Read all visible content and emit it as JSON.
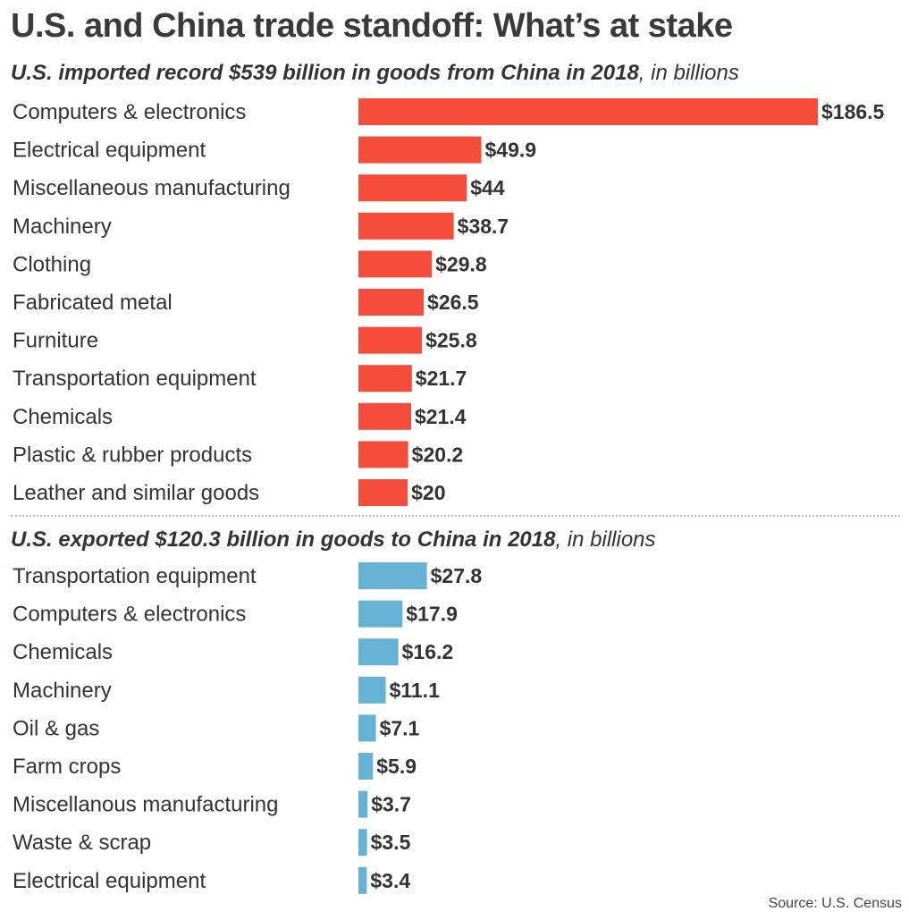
{
  "title": "U.S. and China trade standoff: What’s at stake",
  "source": "Source: U.S. Census",
  "colors": {
    "imports": "#f44d3b",
    "exports": "#65b2d4"
  },
  "chart_data": [
    {
      "type": "bar",
      "orientation": "horizontal",
      "subtitle": "U.S. imported record $539 billion in goods from China in 2018",
      "subtitle_unit": ", in billions",
      "categories": [
        "Computers & electronics",
        "Electrical equipment",
        "Miscellaneous manufacturing",
        "Machinery",
        "Clothing",
        "Fabricated metal",
        "Furniture",
        "Transportation equipment",
        "Chemicals",
        "Plastic & rubber products",
        "Leather and similar goods"
      ],
      "values": [
        186.5,
        49.9,
        44,
        38.7,
        29.8,
        26.5,
        25.8,
        21.7,
        21.4,
        20.2,
        20
      ],
      "value_labels": [
        "$186.5",
        "$49.9",
        "$44",
        "$38.7",
        "$29.8",
        "$26.5",
        "$25.8",
        "$21.7",
        "$21.4",
        "$20.2",
        "$20"
      ]
    },
    {
      "type": "bar",
      "orientation": "horizontal",
      "subtitle": "U.S. exported $120.3 billion in goods to China in 2018",
      "subtitle_unit": ", in billions",
      "categories": [
        "Transportation equipment",
        "Computers & electronics",
        "Chemicals",
        "Machinery",
        "Oil & gas",
        "Farm crops",
        "Miscellanous manufacturing",
        "Waste & scrap",
        "Electrical equipment"
      ],
      "values": [
        27.8,
        17.9,
        16.2,
        11.1,
        7.1,
        5.9,
        3.7,
        3.5,
        3.4
      ],
      "value_labels": [
        "$27.8",
        "$17.9",
        "$16.2",
        "$11.1",
        "$7.1",
        "$5.9",
        "$3.7",
        "$3.5",
        "$3.4"
      ]
    }
  ]
}
